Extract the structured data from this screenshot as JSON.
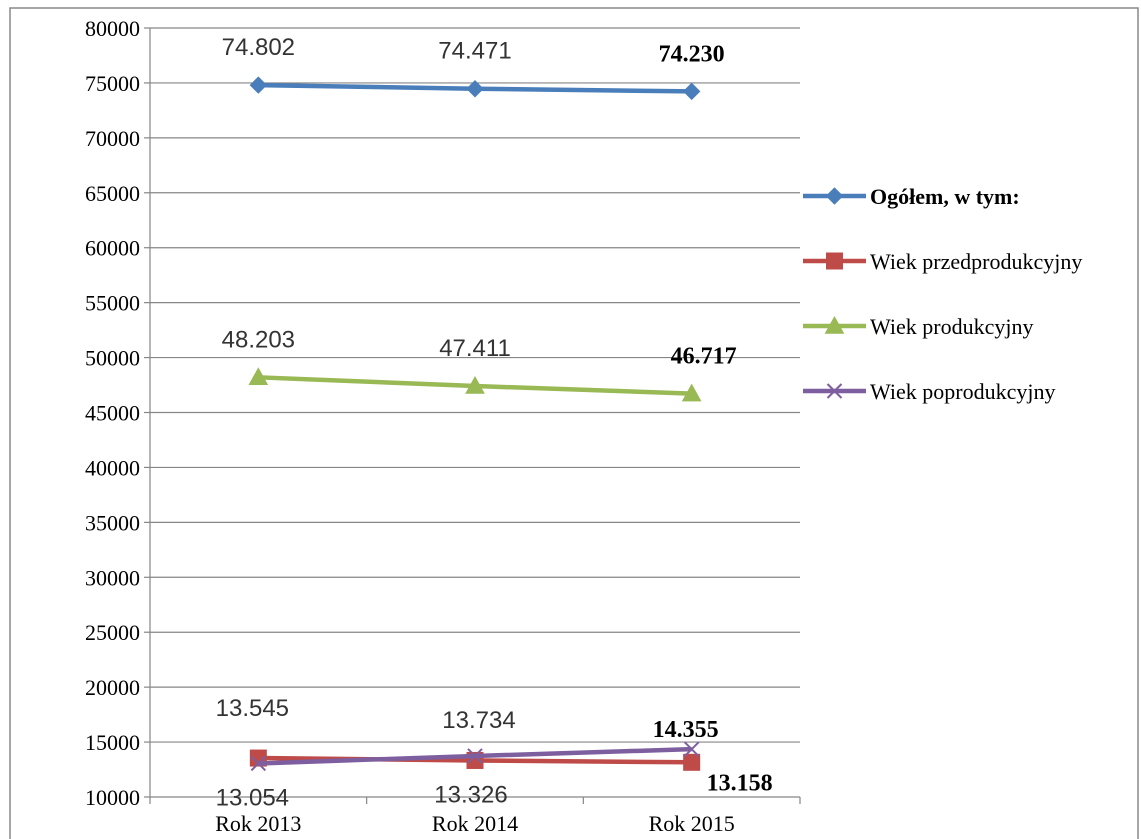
{
  "chart_data": {
    "type": "line",
    "title": "",
    "xlabel": "",
    "ylabel": "",
    "categories": [
      "Rok 2013",
      "Rok 2014",
      "Rok 2015"
    ],
    "ylim": [
      10000,
      80000
    ],
    "ytick_step": 5000,
    "grid": true,
    "legend_position": "right",
    "series": [
      {
        "name": "Ogółem, w tym:",
        "values": [
          74802,
          74471,
          74230
        ],
        "labels": [
          "74.802",
          "74.471",
          "74.230"
        ],
        "color": "#4a7ebb",
        "marker": "diamond",
        "bold_last": true,
        "legend_bold": true
      },
      {
        "name": "Wiek przedprodukcyjny",
        "values": [
          13545,
          13326,
          13158
        ],
        "labels": [
          "13.545",
          "13.326",
          "13.158"
        ],
        "color": "#be4b48",
        "marker": "square",
        "bold_last": true,
        "legend_bold": false
      },
      {
        "name": "Wiek produkcyjny",
        "values": [
          48203,
          47411,
          46717
        ],
        "labels": [
          "48.203",
          "47.411",
          "46.717"
        ],
        "color": "#98b954",
        "marker": "triangle",
        "bold_last": true,
        "legend_bold": false
      },
      {
        "name": "Wiek poprodukcyjny",
        "values": [
          13054,
          13734,
          14355
        ],
        "labels": [
          "13.054",
          "13.734",
          "14.355"
        ],
        "color": "#7d5fa0",
        "marker": "x",
        "bold_last": true,
        "legend_bold": false
      }
    ]
  }
}
